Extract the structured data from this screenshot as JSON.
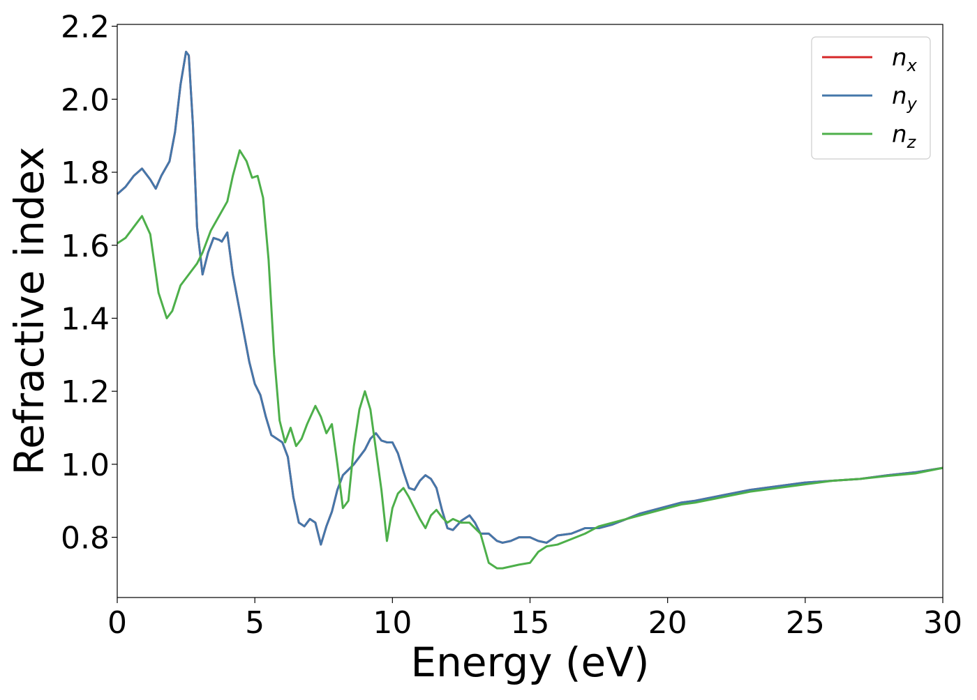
{
  "chart_data": {
    "type": "line",
    "title": "",
    "xlabel": "Energy (eV)",
    "ylabel": "Refractive index",
    "xlim": [
      0,
      30
    ],
    "ylim": [
      0.635,
      2.205
    ],
    "xticks": [
      0,
      5,
      10,
      15,
      20,
      25,
      30
    ],
    "xtick_labels": [
      "0",
      "5",
      "10",
      "15",
      "20",
      "25",
      "30"
    ],
    "yticks": [
      0.8,
      1.0,
      1.2,
      1.4,
      1.6,
      1.8,
      2.0,
      2.2
    ],
    "ytick_labels": [
      "0.8",
      "1.0",
      "1.2",
      "1.4",
      "1.6",
      "1.8",
      "2.0",
      "2.2"
    ],
    "grid": false,
    "legend_position": "top-right",
    "series": [
      {
        "name": "n_x",
        "legend_base": "n",
        "legend_sub": "x",
        "color": "#d62728",
        "x": [
          0,
          0.3,
          0.6,
          0.9,
          1.2,
          1.4,
          1.6,
          1.9,
          2.1,
          2.3,
          2.5,
          2.6,
          2.75,
          2.9,
          3.1,
          3.3,
          3.5,
          3.7,
          3.8,
          4.0,
          4.2,
          4.4,
          4.6,
          4.8,
          5.0,
          5.2,
          5.4,
          5.6,
          5.8,
          6.0,
          6.2,
          6.4,
          6.6,
          6.8,
          7.0,
          7.2,
          7.4,
          7.6,
          7.8,
          8.0,
          8.2,
          8.4,
          8.6,
          8.8,
          9.0,
          9.2,
          9.4,
          9.6,
          9.8,
          10.0,
          10.2,
          10.4,
          10.6,
          10.8,
          11.0,
          11.2,
          11.4,
          11.6,
          11.8,
          12.0,
          12.2,
          12.5,
          12.8,
          13.0,
          13.2,
          13.5,
          13.8,
          14.0,
          14.3,
          14.6,
          15.0,
          15.3,
          15.6,
          16.0,
          16.5,
          17.0,
          17.5,
          18.0,
          18.5,
          19.0,
          19.5,
          20.0,
          20.5,
          21.0,
          22.0,
          23.0,
          24.0,
          25.0,
          26.0,
          27.0,
          28.0,
          29.0,
          30.0
        ],
        "y": [
          1.74,
          1.76,
          1.79,
          1.81,
          1.78,
          1.755,
          1.79,
          1.83,
          1.91,
          2.04,
          2.13,
          2.12,
          1.93,
          1.65,
          1.52,
          1.58,
          1.62,
          1.615,
          1.61,
          1.635,
          1.52,
          1.44,
          1.36,
          1.28,
          1.22,
          1.19,
          1.13,
          1.08,
          1.07,
          1.06,
          1.02,
          0.91,
          0.84,
          0.83,
          0.85,
          0.84,
          0.78,
          0.83,
          0.87,
          0.93,
          0.97,
          0.985,
          1.0,
          1.02,
          1.04,
          1.07,
          1.085,
          1.065,
          1.06,
          1.06,
          1.03,
          0.98,
          0.935,
          0.93,
          0.955,
          0.97,
          0.96,
          0.935,
          0.875,
          0.825,
          0.82,
          0.845,
          0.86,
          0.84,
          0.81,
          0.81,
          0.79,
          0.785,
          0.79,
          0.8,
          0.8,
          0.79,
          0.785,
          0.805,
          0.81,
          0.825,
          0.825,
          0.835,
          0.85,
          0.865,
          0.875,
          0.885,
          0.895,
          0.9,
          0.915,
          0.93,
          0.94,
          0.95,
          0.955,
          0.96,
          0.97,
          0.978,
          0.99
        ]
      },
      {
        "name": "n_y",
        "legend_base": "n",
        "legend_sub": "y",
        "color": "#4477aa",
        "x": [
          0,
          0.3,
          0.6,
          0.9,
          1.2,
          1.4,
          1.6,
          1.9,
          2.1,
          2.3,
          2.5,
          2.6,
          2.75,
          2.9,
          3.1,
          3.3,
          3.5,
          3.7,
          3.8,
          4.0,
          4.2,
          4.4,
          4.6,
          4.8,
          5.0,
          5.2,
          5.4,
          5.6,
          5.8,
          6.0,
          6.2,
          6.4,
          6.6,
          6.8,
          7.0,
          7.2,
          7.4,
          7.6,
          7.8,
          8.0,
          8.2,
          8.4,
          8.6,
          8.8,
          9.0,
          9.2,
          9.4,
          9.6,
          9.8,
          10.0,
          10.2,
          10.4,
          10.6,
          10.8,
          11.0,
          11.2,
          11.4,
          11.6,
          11.8,
          12.0,
          12.2,
          12.5,
          12.8,
          13.0,
          13.2,
          13.5,
          13.8,
          14.0,
          14.3,
          14.6,
          15.0,
          15.3,
          15.6,
          16.0,
          16.5,
          17.0,
          17.5,
          18.0,
          18.5,
          19.0,
          19.5,
          20.0,
          20.5,
          21.0,
          22.0,
          23.0,
          24.0,
          25.0,
          26.0,
          27.0,
          28.0,
          29.0,
          30.0
        ],
        "y": [
          1.74,
          1.76,
          1.79,
          1.81,
          1.78,
          1.755,
          1.79,
          1.83,
          1.91,
          2.04,
          2.13,
          2.12,
          1.93,
          1.65,
          1.52,
          1.58,
          1.62,
          1.615,
          1.61,
          1.635,
          1.52,
          1.44,
          1.36,
          1.28,
          1.22,
          1.19,
          1.13,
          1.08,
          1.07,
          1.06,
          1.02,
          0.91,
          0.84,
          0.83,
          0.85,
          0.84,
          0.78,
          0.83,
          0.87,
          0.93,
          0.97,
          0.985,
          1.0,
          1.02,
          1.04,
          1.07,
          1.085,
          1.065,
          1.06,
          1.06,
          1.03,
          0.98,
          0.935,
          0.93,
          0.955,
          0.97,
          0.96,
          0.935,
          0.875,
          0.825,
          0.82,
          0.845,
          0.86,
          0.84,
          0.81,
          0.81,
          0.79,
          0.785,
          0.79,
          0.8,
          0.8,
          0.79,
          0.785,
          0.805,
          0.81,
          0.825,
          0.825,
          0.835,
          0.85,
          0.865,
          0.875,
          0.885,
          0.895,
          0.9,
          0.915,
          0.93,
          0.94,
          0.95,
          0.955,
          0.96,
          0.97,
          0.978,
          0.99
        ]
      },
      {
        "name": "n_z",
        "legend_base": "n",
        "legend_sub": "z",
        "color": "#4daf4a",
        "x": [
          0,
          0.3,
          0.6,
          0.9,
          1.2,
          1.5,
          1.8,
          2.0,
          2.3,
          2.6,
          2.9,
          3.1,
          3.4,
          3.7,
          4.0,
          4.2,
          4.45,
          4.7,
          4.9,
          5.1,
          5.3,
          5.5,
          5.7,
          5.9,
          6.1,
          6.3,
          6.5,
          6.7,
          6.9,
          7.2,
          7.4,
          7.6,
          7.8,
          8.0,
          8.2,
          8.4,
          8.6,
          8.8,
          9.0,
          9.2,
          9.4,
          9.6,
          9.8,
          10.0,
          10.2,
          10.4,
          10.6,
          10.8,
          11.0,
          11.2,
          11.4,
          11.6,
          11.8,
          12.0,
          12.2,
          12.5,
          12.8,
          13.0,
          13.2,
          13.5,
          13.8,
          14.0,
          14.3,
          14.6,
          15.0,
          15.3,
          15.6,
          16.0,
          16.5,
          17.0,
          17.5,
          18.0,
          18.5,
          19.0,
          19.5,
          20.0,
          20.5,
          21.0,
          22.0,
          23.0,
          24.0,
          25.0,
          26.0,
          27.0,
          28.0,
          29.0,
          30.0
        ],
        "y": [
          1.605,
          1.62,
          1.65,
          1.68,
          1.63,
          1.47,
          1.4,
          1.42,
          1.49,
          1.52,
          1.55,
          1.58,
          1.64,
          1.68,
          1.72,
          1.79,
          1.86,
          1.83,
          1.785,
          1.79,
          1.73,
          1.56,
          1.3,
          1.12,
          1.06,
          1.1,
          1.05,
          1.07,
          1.11,
          1.16,
          1.13,
          1.085,
          1.11,
          1.0,
          0.88,
          0.9,
          1.05,
          1.15,
          1.2,
          1.15,
          1.04,
          0.93,
          0.79,
          0.88,
          0.92,
          0.935,
          0.91,
          0.88,
          0.85,
          0.825,
          0.86,
          0.875,
          0.855,
          0.84,
          0.85,
          0.84,
          0.84,
          0.825,
          0.81,
          0.73,
          0.715,
          0.715,
          0.72,
          0.725,
          0.73,
          0.76,
          0.775,
          0.78,
          0.795,
          0.81,
          0.83,
          0.84,
          0.85,
          0.86,
          0.87,
          0.88,
          0.89,
          0.895,
          0.91,
          0.925,
          0.935,
          0.945,
          0.955,
          0.96,
          0.968,
          0.975,
          0.99
        ]
      }
    ]
  }
}
